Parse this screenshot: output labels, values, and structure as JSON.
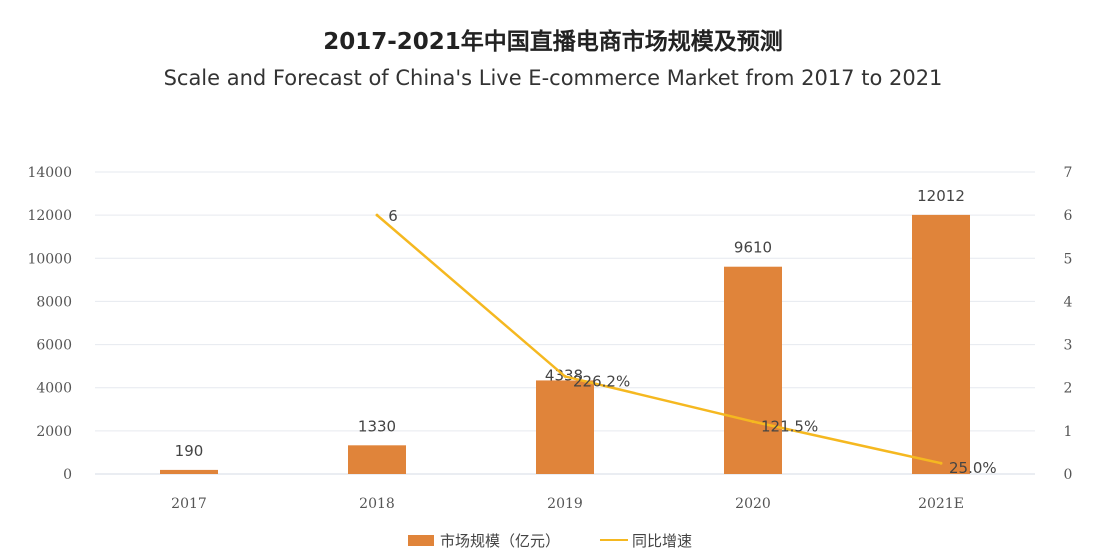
{
  "chart_data": {
    "type": "bar+line",
    "title": "2017-2021年中国直播电商市场规模及预测",
    "subtitle": "Scale and Forecast of China's Live E-commerce Market from 2017 to 2021",
    "categories": [
      "2017",
      "2018",
      "2019",
      "2020",
      "2021E"
    ],
    "series": [
      {
        "name": "市场规模（亿元）",
        "type": "bar",
        "axis": "left",
        "values": [
          190,
          1330,
          4338,
          9610,
          12012
        ],
        "labels": [
          "190",
          "1330",
          "4338",
          "9610",
          "12012"
        ],
        "color": "#e0843a"
      },
      {
        "name": "同比增速",
        "type": "line",
        "axis": "right",
        "values": [
          null,
          6,
          2.262,
          1.215,
          0.25
        ],
        "labels": [
          "",
          "6",
          "226.2%",
          "121.5%",
          "25.0%"
        ],
        "color": "#f5b820"
      }
    ],
    "y_left": {
      "ylim": [
        0,
        14000
      ],
      "ticks": [
        "0",
        "2000",
        "4000",
        "6000",
        "8000",
        "10000",
        "12000",
        "14000"
      ]
    },
    "y_right": {
      "ylim": [
        0,
        7
      ],
      "ticks": [
        "0",
        "1",
        "2",
        "3",
        "4",
        "5",
        "6",
        "7"
      ]
    },
    "grid": true,
    "legend": "bottom"
  }
}
